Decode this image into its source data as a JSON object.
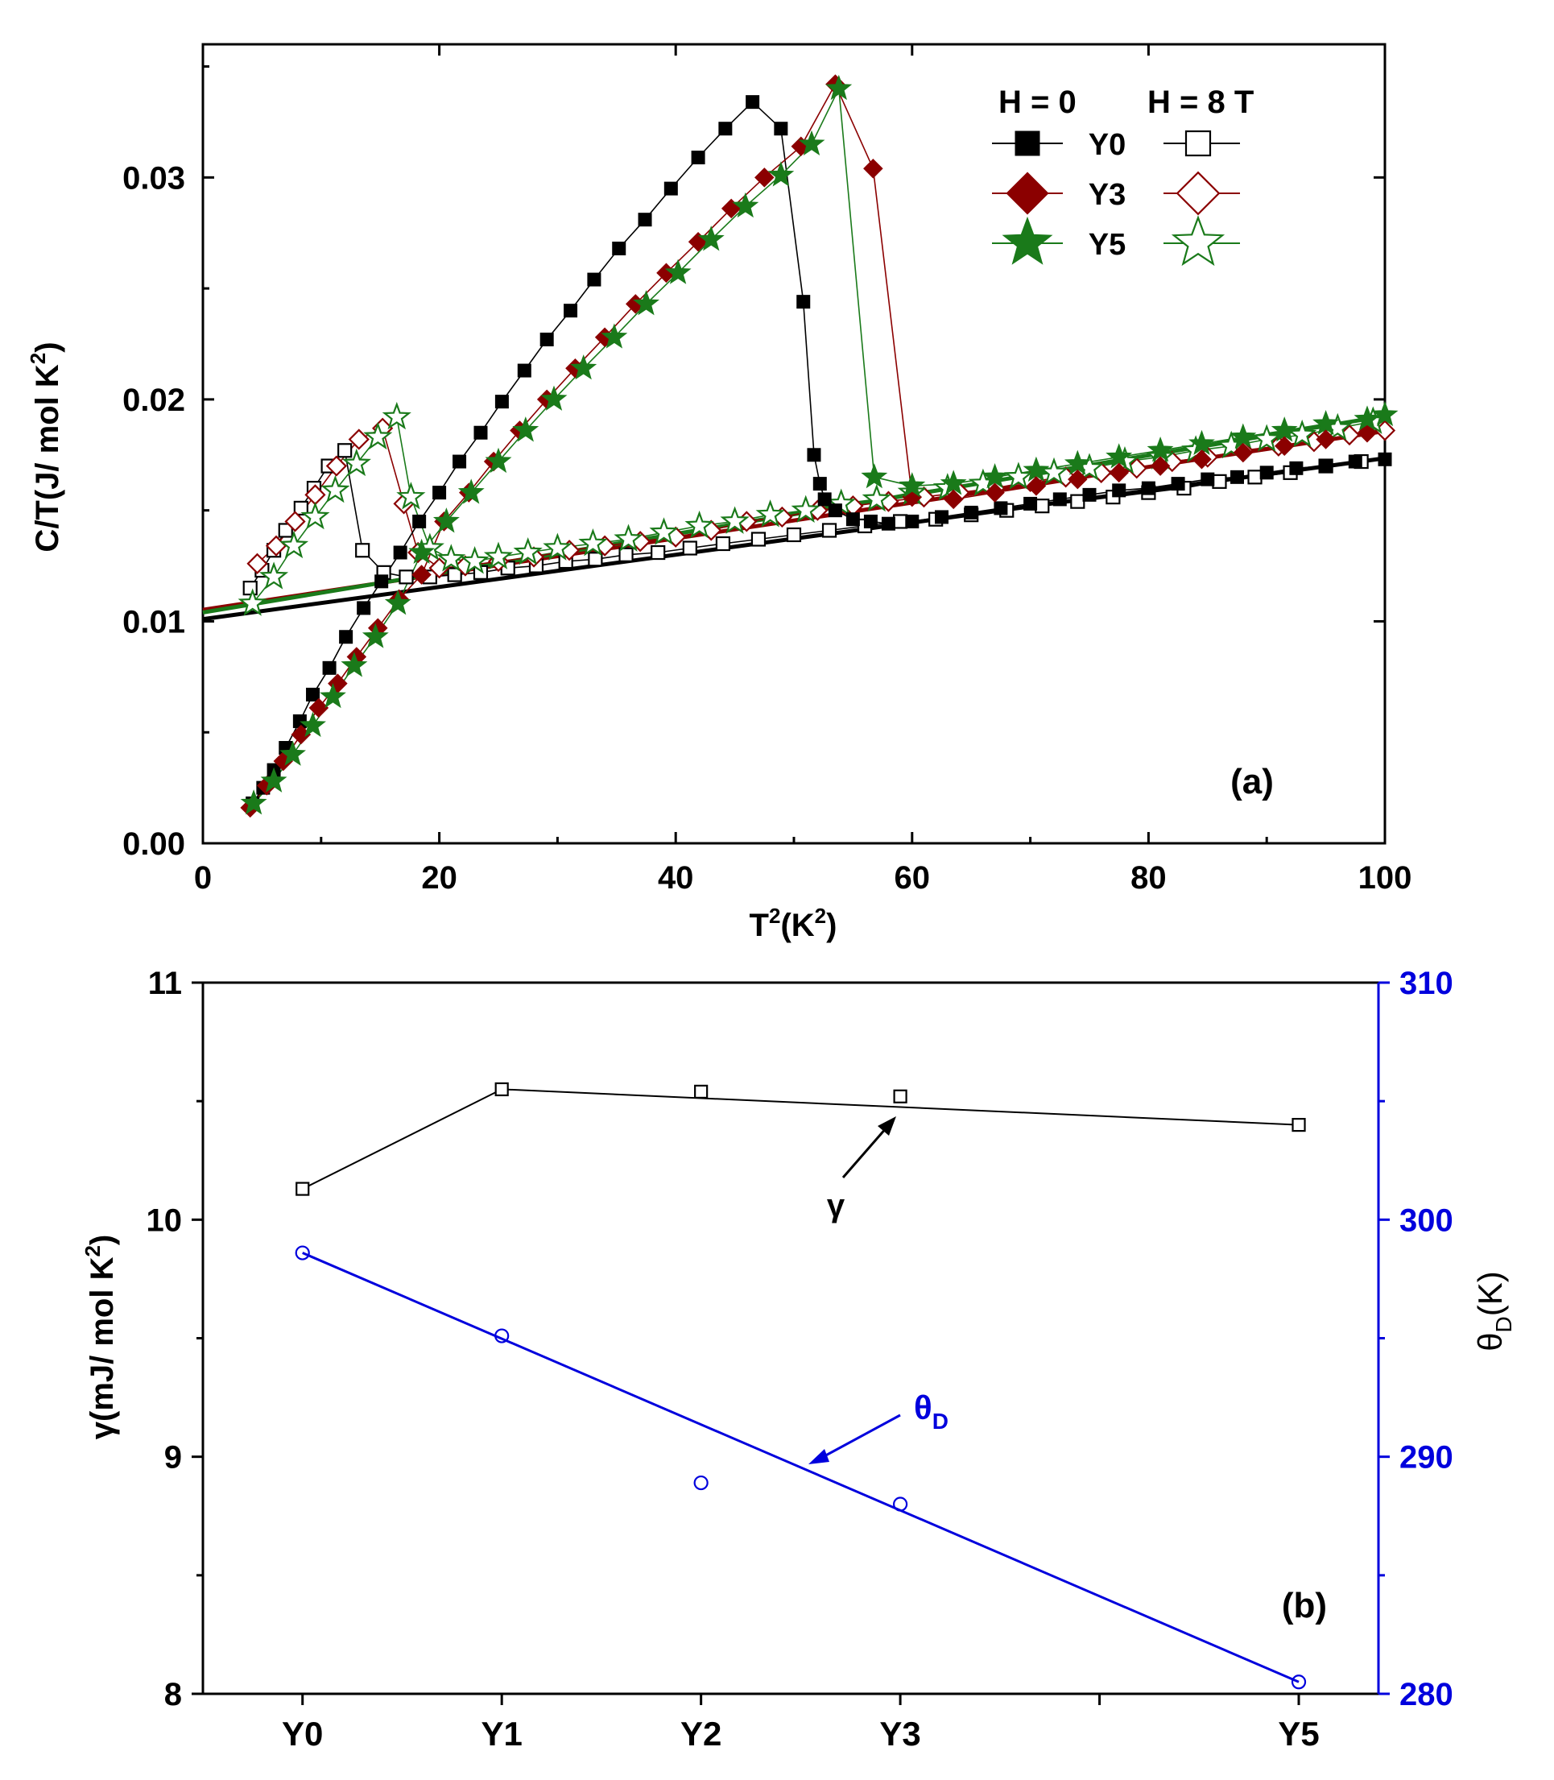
{
  "chart_data": [
    {
      "panel": "a",
      "type": "scatter",
      "panel_label": "(a)",
      "xlabel": "T",
      "xlabel_sup": "2",
      "xlabel_unit_pre": "(K",
      "xlabel_unit_sup": "2",
      "xlabel_unit_post": ")",
      "ylabel": "C/T(J/ mol K",
      "ylabel_sup": "2",
      "ylabel_post": ")",
      "xlim": [
        0,
        100
      ],
      "ylim": [
        0,
        0.036
      ],
      "xticks": [
        0,
        20,
        40,
        60,
        80,
        100
      ],
      "xtick_labels": [
        "0",
        "20",
        "40",
        "60",
        "80",
        "100"
      ],
      "yticks": [
        0,
        0.01,
        0.02,
        0.03
      ],
      "ytick_labels": [
        "0.00",
        "0.01",
        "0.02",
        "0.03"
      ],
      "legend": {
        "header_h0": "H = 0",
        "header_h8": "H = 8 T",
        "position": "top-right",
        "entries": [
          "Y0",
          "Y3",
          "Y5"
        ]
      },
      "colors": {
        "Y0": "#000000",
        "Y3": "#8b0000",
        "Y5": "#1a7a1a"
      },
      "fit_lines": [
        {
          "sample": "Y0",
          "gamma": 0.0101,
          "beta": 7.25e-05
        },
        {
          "sample": "Y3",
          "gamma": 0.01052,
          "beta": 8.05e-05
        },
        {
          "sample": "Y5",
          "gamma": 0.0104,
          "beta": 8.85e-05
        }
      ],
      "series": [
        {
          "name": "Y0 H=0",
          "sample": "Y0",
          "field": "0",
          "marker": "square",
          "filled": true,
          "x": [
            4.2,
            5.1,
            6,
            7,
            8.2,
            9.3,
            10.7,
            12.1,
            13.6,
            15.1,
            16.7,
            18.3,
            20,
            21.7,
            23.5,
            25.3,
            27.2,
            29.1,
            31.1,
            33.1,
            35.2,
            37.4,
            39.6,
            41.9,
            44.2,
            46.5,
            48.9,
            50.8,
            51.7,
            52.2,
            52.6,
            53.5,
            55,
            56.5,
            58,
            60,
            62.5,
            65,
            67.5,
            70,
            72.5,
            75,
            77.5,
            80,
            82.5,
            85,
            87.5,
            90,
            92.5,
            95,
            97.5,
            100
          ],
          "y": [
            0.0018,
            0.0025,
            0.0033,
            0.0043,
            0.0055,
            0.0067,
            0.0079,
            0.0093,
            0.0106,
            0.0118,
            0.0131,
            0.0145,
            0.0158,
            0.0172,
            0.0185,
            0.0199,
            0.0213,
            0.0227,
            0.024,
            0.0254,
            0.0268,
            0.0281,
            0.0295,
            0.0309,
            0.0322,
            0.0334,
            0.0322,
            0.0244,
            0.0175,
            0.0162,
            0.0155,
            0.015,
            0.0146,
            0.0145,
            0.0144,
            0.0145,
            0.0147,
            0.0149,
            0.0151,
            0.0153,
            0.0155,
            0.0157,
            0.0159,
            0.016,
            0.0162,
            0.0164,
            0.0165,
            0.0167,
            0.0169,
            0.017,
            0.0172,
            0.0173
          ]
        },
        {
          "name": "Y0 H=8T",
          "sample": "Y0",
          "field": "8T",
          "marker": "square",
          "filled": false,
          "x": [
            4,
            5,
            6,
            7,
            8.3,
            9.4,
            10.6,
            12,
            13.5,
            15.3,
            17.2,
            19.2,
            21.3,
            23.5,
            25.8,
            28.2,
            30.7,
            33.2,
            35.8,
            38.5,
            41.2,
            44,
            47,
            50,
            53,
            56,
            59,
            62,
            65,
            68,
            71,
            74,
            77,
            80,
            83,
            86,
            89,
            92,
            95,
            98
          ],
          "y": [
            0.0115,
            0.0123,
            0.0132,
            0.0141,
            0.0151,
            0.016,
            0.017,
            0.0177,
            0.0132,
            0.0122,
            0.012,
            0.012,
            0.0121,
            0.0122,
            0.0124,
            0.0125,
            0.0127,
            0.0128,
            0.013,
            0.0131,
            0.0133,
            0.0135,
            0.0137,
            0.0139,
            0.0141,
            0.0143,
            0.0145,
            0.0146,
            0.0148,
            0.015,
            0.0152,
            0.0154,
            0.0156,
            0.0158,
            0.016,
            0.0163,
            0.0165,
            0.0167,
            0.017,
            0.0172
          ]
        },
        {
          "name": "Y3 H=0",
          "sample": "Y3",
          "field": "0",
          "marker": "diamond",
          "filled": true,
          "x": [
            4,
            5.4,
            6.8,
            8.3,
            9.8,
            11.4,
            13,
            14.8,
            16.6,
            18.5,
            20.4,
            22.5,
            24.6,
            26.8,
            29.1,
            31.5,
            34,
            36.6,
            39.2,
            41.9,
            44.7,
            47.5,
            50.6,
            53.5,
            56.7,
            60,
            63.5,
            67,
            70.5,
            74,
            77.5,
            81,
            84.5,
            88,
            91.5,
            95,
            98.5
          ],
          "y": [
            0.0016,
            0.0026,
            0.0037,
            0.0049,
            0.0061,
            0.0072,
            0.0084,
            0.0097,
            0.011,
            0.0121,
            0.0145,
            0.0158,
            0.0172,
            0.0186,
            0.02,
            0.0214,
            0.0228,
            0.0243,
            0.0257,
            0.0271,
            0.0286,
            0.03,
            0.0314,
            0.0342,
            0.0304,
            0.0156,
            0.0155,
            0.0158,
            0.0161,
            0.0164,
            0.0167,
            0.017,
            0.0173,
            0.0176,
            0.0179,
            0.0182,
            0.0185
          ]
        },
        {
          "name": "Y3 H=8T",
          "sample": "Y3",
          "field": "8T",
          "marker": "diamond",
          "filled": false,
          "x": [
            4.6,
            6.2,
            7.8,
            9.5,
            11.3,
            13.2,
            15.2,
            17,
            18.2,
            20,
            22.2,
            25,
            28,
            31,
            34,
            37,
            40,
            43,
            46,
            49,
            52,
            55,
            58,
            61,
            64,
            67,
            70,
            73,
            76,
            79,
            82,
            85,
            88,
            91,
            94,
            97,
            100
          ],
          "y": [
            0.0126,
            0.0134,
            0.0145,
            0.0157,
            0.017,
            0.0182,
            0.0187,
            0.0153,
            0.0131,
            0.0124,
            0.0125,
            0.0127,
            0.0129,
            0.0132,
            0.0134,
            0.0136,
            0.0138,
            0.0141,
            0.0145,
            0.0147,
            0.015,
            0.0152,
            0.0154,
            0.0156,
            0.0158,
            0.016,
            0.0163,
            0.0165,
            0.0167,
            0.0169,
            0.0172,
            0.0174,
            0.0177,
            0.0179,
            0.0181,
            0.0184,
            0.0186
          ]
        },
        {
          "name": "Y5 H=0",
          "sample": "Y5",
          "field": "0",
          "marker": "star",
          "filled": true,
          "x": [
            4.3,
            6,
            7.6,
            9.3,
            11,
            12.8,
            14.6,
            16.5,
            18.5,
            20.6,
            22.7,
            25,
            27.3,
            29.7,
            32.2,
            34.8,
            37.5,
            40.2,
            43,
            45.9,
            48.9,
            51.5,
            53.8,
            56.8,
            60,
            63.5,
            67,
            70.5,
            74,
            77.5,
            81,
            84.5,
            88,
            91.5,
            95,
            98.5,
            100
          ],
          "y": [
            0.0018,
            0.0028,
            0.004,
            0.0053,
            0.0066,
            0.008,
            0.0093,
            0.0108,
            0.0131,
            0.0145,
            0.0158,
            0.0172,
            0.0186,
            0.02,
            0.0214,
            0.0228,
            0.0243,
            0.0257,
            0.0272,
            0.0287,
            0.0301,
            0.0315,
            0.034,
            0.0165,
            0.0161,
            0.0162,
            0.0165,
            0.0168,
            0.0171,
            0.0174,
            0.0177,
            0.018,
            0.0183,
            0.0186,
            0.0189,
            0.0191,
            0.0193
          ]
        },
        {
          "name": "Y5 H=8T",
          "sample": "Y5",
          "field": "8T",
          "marker": "star",
          "filled": false,
          "x": [
            4.2,
            6,
            7.7,
            9.5,
            11.2,
            13,
            14.8,
            16.4,
            17.6,
            19.2,
            21,
            23,
            25,
            27.5,
            30,
            33,
            36,
            39,
            42,
            45,
            48,
            51,
            54,
            57,
            60,
            63,
            66,
            69,
            72,
            75,
            78,
            81,
            84,
            87,
            90,
            93,
            96,
            99
          ],
          "y": [
            0.0108,
            0.012,
            0.0134,
            0.0147,
            0.0159,
            0.0171,
            0.0183,
            0.0192,
            0.0156,
            0.0133,
            0.0128,
            0.0127,
            0.0129,
            0.0131,
            0.0133,
            0.0135,
            0.0137,
            0.014,
            0.0143,
            0.0145,
            0.0148,
            0.015,
            0.0153,
            0.0155,
            0.0158,
            0.016,
            0.0162,
            0.0165,
            0.0167,
            0.0169,
            0.0172,
            0.0174,
            0.0177,
            0.0179,
            0.0182,
            0.0184,
            0.0187,
            0.019
          ]
        }
      ]
    },
    {
      "panel": "b",
      "type": "line",
      "panel_label": "(b)",
      "categories": [
        "Y0",
        "Y1",
        "Y2",
        "Y3",
        "Y5"
      ],
      "category_positions": [
        0,
        1,
        2,
        3,
        5
      ],
      "xlim": [
        -0.5,
        5.4
      ],
      "ylabel_left_pre": "γ(mJ/ mol K",
      "ylabel_left_sup": "2",
      "ylabel_left_post": ")",
      "ylabel_right": "θ",
      "ylabel_right_sub": "D",
      "ylabel_right_post": "(K)",
      "ylim_left": [
        8,
        11
      ],
      "ylim_right": [
        280,
        310
      ],
      "yticks_left": [
        "8",
        "9",
        "10",
        "11"
      ],
      "yticks_right": [
        "280",
        "290",
        "300",
        "310"
      ],
      "right_axis_color": "#0000dd",
      "gamma_color": "#000000",
      "series": [
        {
          "name": "γ",
          "axis": "left",
          "marker": "square",
          "values": [
            10.13,
            10.55,
            10.54,
            10.52,
            10.4
          ]
        },
        {
          "name": "θD",
          "axis": "right",
          "marker": "circle",
          "values": [
            298.6,
            295.1,
            288.9,
            288.0,
            280.5
          ],
          "fit": {
            "start": 298.6,
            "end": 280.5
          }
        }
      ],
      "annotations": {
        "gamma_label": "γ",
        "theta_label": "θ",
        "theta_sub": "D"
      }
    }
  ]
}
